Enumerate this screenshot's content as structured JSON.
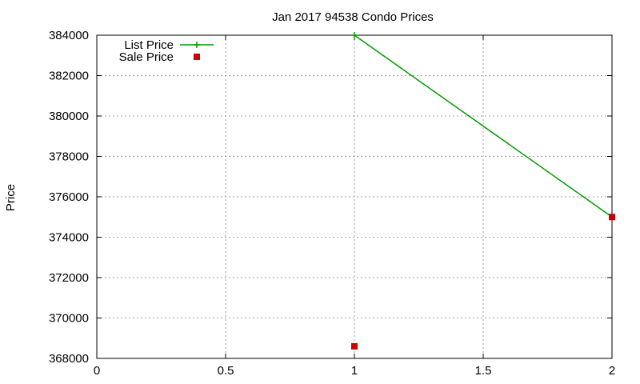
{
  "chart_data": {
    "type": "line",
    "title": "Jan 2017 94538 Condo Prices",
    "xlabel": "",
    "ylabel": "Price",
    "xlim": [
      0,
      2
    ],
    "ylim": [
      368000,
      384000
    ],
    "x_ticks": [
      0,
      0.5,
      1,
      1.5,
      2
    ],
    "x_tick_labels": [
      "0",
      "0.5",
      "1",
      "1.5",
      "2"
    ],
    "y_ticks": [
      368000,
      370000,
      372000,
      374000,
      376000,
      378000,
      380000,
      382000,
      384000
    ],
    "y_tick_labels": [
      "368000",
      "370000",
      "372000",
      "374000",
      "376000",
      "378000",
      "380000",
      "382000",
      "384000"
    ],
    "grid": true,
    "legend_position": "top-left",
    "series": [
      {
        "name": "List Price",
        "style": "line-with-plus-markers",
        "color": "#009900",
        "points": [
          [
            1,
            384000
          ],
          [
            2,
            375000
          ]
        ]
      },
      {
        "name": "Sale Price",
        "style": "square-markers",
        "color": "#cc0000",
        "points": [
          [
            1,
            368600
          ],
          [
            2,
            375000
          ]
        ]
      }
    ]
  }
}
